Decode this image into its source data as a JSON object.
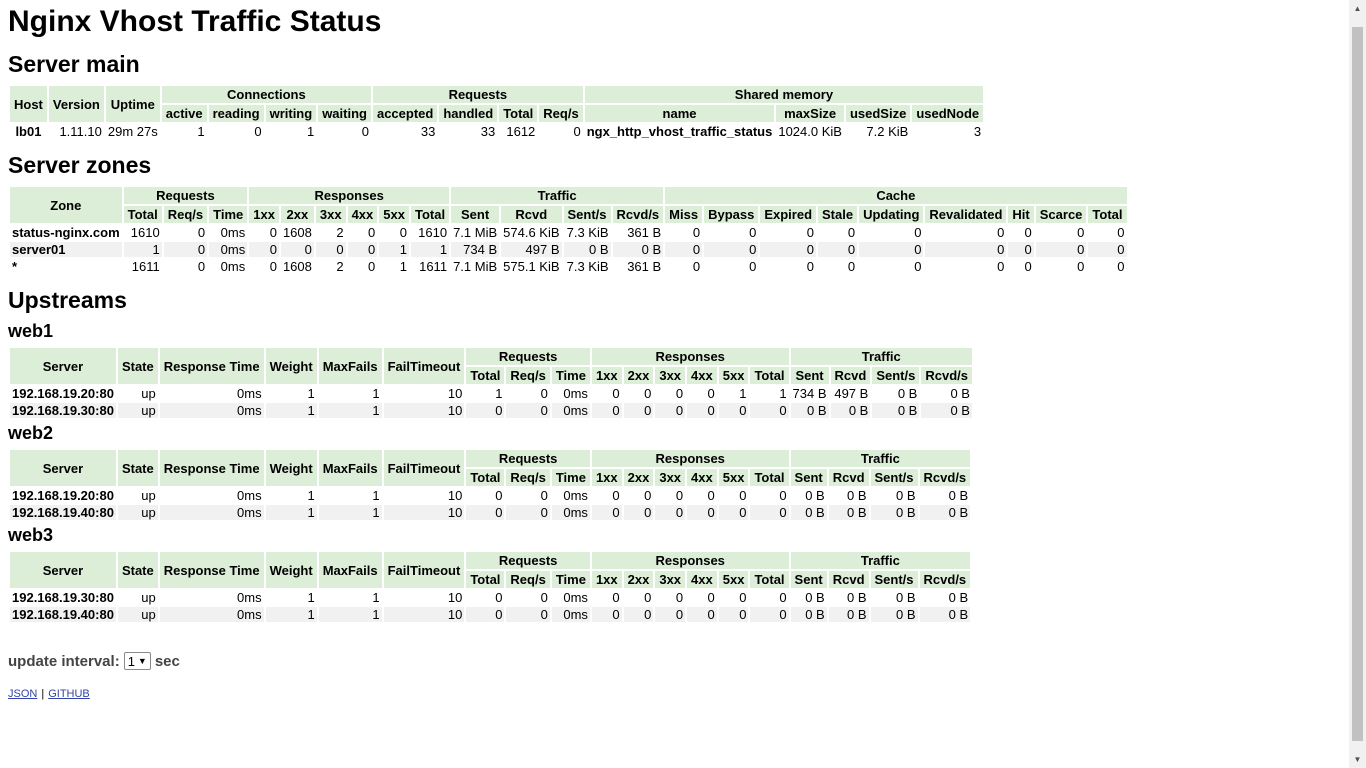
{
  "page_title": "Nginx Vhost Traffic Status",
  "server_main": {
    "title": "Server main",
    "group_headers": {
      "connections": "Connections",
      "requests": "Requests",
      "shared_memory": "Shared memory"
    },
    "headers": {
      "host": "Host",
      "version": "Version",
      "uptime": "Uptime"
    },
    "sub_headers": [
      "active",
      "reading",
      "writing",
      "waiting",
      "accepted",
      "handled",
      "Total",
      "Req/s",
      "name",
      "maxSize",
      "usedSize",
      "usedNode"
    ],
    "row": [
      "lb01",
      "1.11.10",
      "29m 27s",
      "1",
      "0",
      "1",
      "0",
      "33",
      "33",
      "1612",
      "0",
      "ngx_http_vhost_traffic_status",
      "1024.0 KiB",
      "7.2 KiB",
      "3"
    ]
  },
  "server_zones": {
    "title": "Server zones",
    "headers": {
      "zone": "Zone"
    },
    "group_headers": {
      "requests": "Requests",
      "responses": "Responses",
      "traffic": "Traffic",
      "cache": "Cache"
    },
    "sub_headers": [
      "Total",
      "Req/s",
      "Time",
      "1xx",
      "2xx",
      "3xx",
      "4xx",
      "5xx",
      "Total",
      "Sent",
      "Rcvd",
      "Sent/s",
      "Rcvd/s",
      "Miss",
      "Bypass",
      "Expired",
      "Stale",
      "Updating",
      "Revalidated",
      "Hit",
      "Scarce",
      "Total"
    ],
    "rows": [
      [
        "status-nginx.com",
        "1610",
        "0",
        "0ms",
        "0",
        "1608",
        "2",
        "0",
        "0",
        "1610",
        "7.1 MiB",
        "574.6 KiB",
        "7.3 KiB",
        "361 B",
        "0",
        "0",
        "0",
        "0",
        "0",
        "0",
        "0",
        "0",
        "0"
      ],
      [
        "server01",
        "1",
        "0",
        "0ms",
        "0",
        "0",
        "0",
        "0",
        "1",
        "1",
        "734 B",
        "497 B",
        "0 B",
        "0 B",
        "0",
        "0",
        "0",
        "0",
        "0",
        "0",
        "0",
        "0",
        "0"
      ],
      [
        "*",
        "1611",
        "0",
        "0ms",
        "0",
        "1608",
        "2",
        "0",
        "1",
        "1611",
        "7.1 MiB",
        "575.1 KiB",
        "7.3 KiB",
        "361 B",
        "0",
        "0",
        "0",
        "0",
        "0",
        "0",
        "0",
        "0",
        "0"
      ]
    ]
  },
  "upstreams": {
    "title": "Upstreams",
    "headers": {
      "server": "Server",
      "state": "State",
      "response_time": "Response Time",
      "weight": "Weight",
      "max_fails": "MaxFails",
      "fail_timeout": "FailTimeout"
    },
    "group_headers": {
      "requests": "Requests",
      "responses": "Responses",
      "traffic": "Traffic"
    },
    "sub_headers": [
      "Total",
      "Req/s",
      "Time",
      "1xx",
      "2xx",
      "3xx",
      "4xx",
      "5xx",
      "Total",
      "Sent",
      "Rcvd",
      "Sent/s",
      "Rcvd/s"
    ],
    "groups": [
      {
        "name": "web1",
        "rows": [
          [
            "192.168.19.20:80",
            "up",
            "0ms",
            "1",
            "1",
            "10",
            "1",
            "0",
            "0ms",
            "0",
            "0",
            "0",
            "0",
            "1",
            "1",
            "734 B",
            "497 B",
            "0 B",
            "0 B"
          ],
          [
            "192.168.19.30:80",
            "up",
            "0ms",
            "1",
            "1",
            "10",
            "0",
            "0",
            "0ms",
            "0",
            "0",
            "0",
            "0",
            "0",
            "0",
            "0 B",
            "0 B",
            "0 B",
            "0 B"
          ]
        ]
      },
      {
        "name": "web2",
        "rows": [
          [
            "192.168.19.20:80",
            "up",
            "0ms",
            "1",
            "1",
            "10",
            "0",
            "0",
            "0ms",
            "0",
            "0",
            "0",
            "0",
            "0",
            "0",
            "0 B",
            "0 B",
            "0 B",
            "0 B"
          ],
          [
            "192.168.19.40:80",
            "up",
            "0ms",
            "1",
            "1",
            "10",
            "0",
            "0",
            "0ms",
            "0",
            "0",
            "0",
            "0",
            "0",
            "0",
            "0 B",
            "0 B",
            "0 B",
            "0 B"
          ]
        ]
      },
      {
        "name": "web3",
        "rows": [
          [
            "192.168.19.30:80",
            "up",
            "0ms",
            "1",
            "1",
            "10",
            "0",
            "0",
            "0ms",
            "0",
            "0",
            "0",
            "0",
            "0",
            "0",
            "0 B",
            "0 B",
            "0 B",
            "0 B"
          ],
          [
            "192.168.19.40:80",
            "up",
            "0ms",
            "1",
            "1",
            "10",
            "0",
            "0",
            "0ms",
            "0",
            "0",
            "0",
            "0",
            "0",
            "0",
            "0 B",
            "0 B",
            "0 B",
            "0 B"
          ]
        ]
      }
    ]
  },
  "footer": {
    "update_interval_label": "update interval:",
    "update_interval_value": "1",
    "update_interval_unit": "sec",
    "json_link": "JSON",
    "separator": "|",
    "github_link": "GITHUB"
  }
}
